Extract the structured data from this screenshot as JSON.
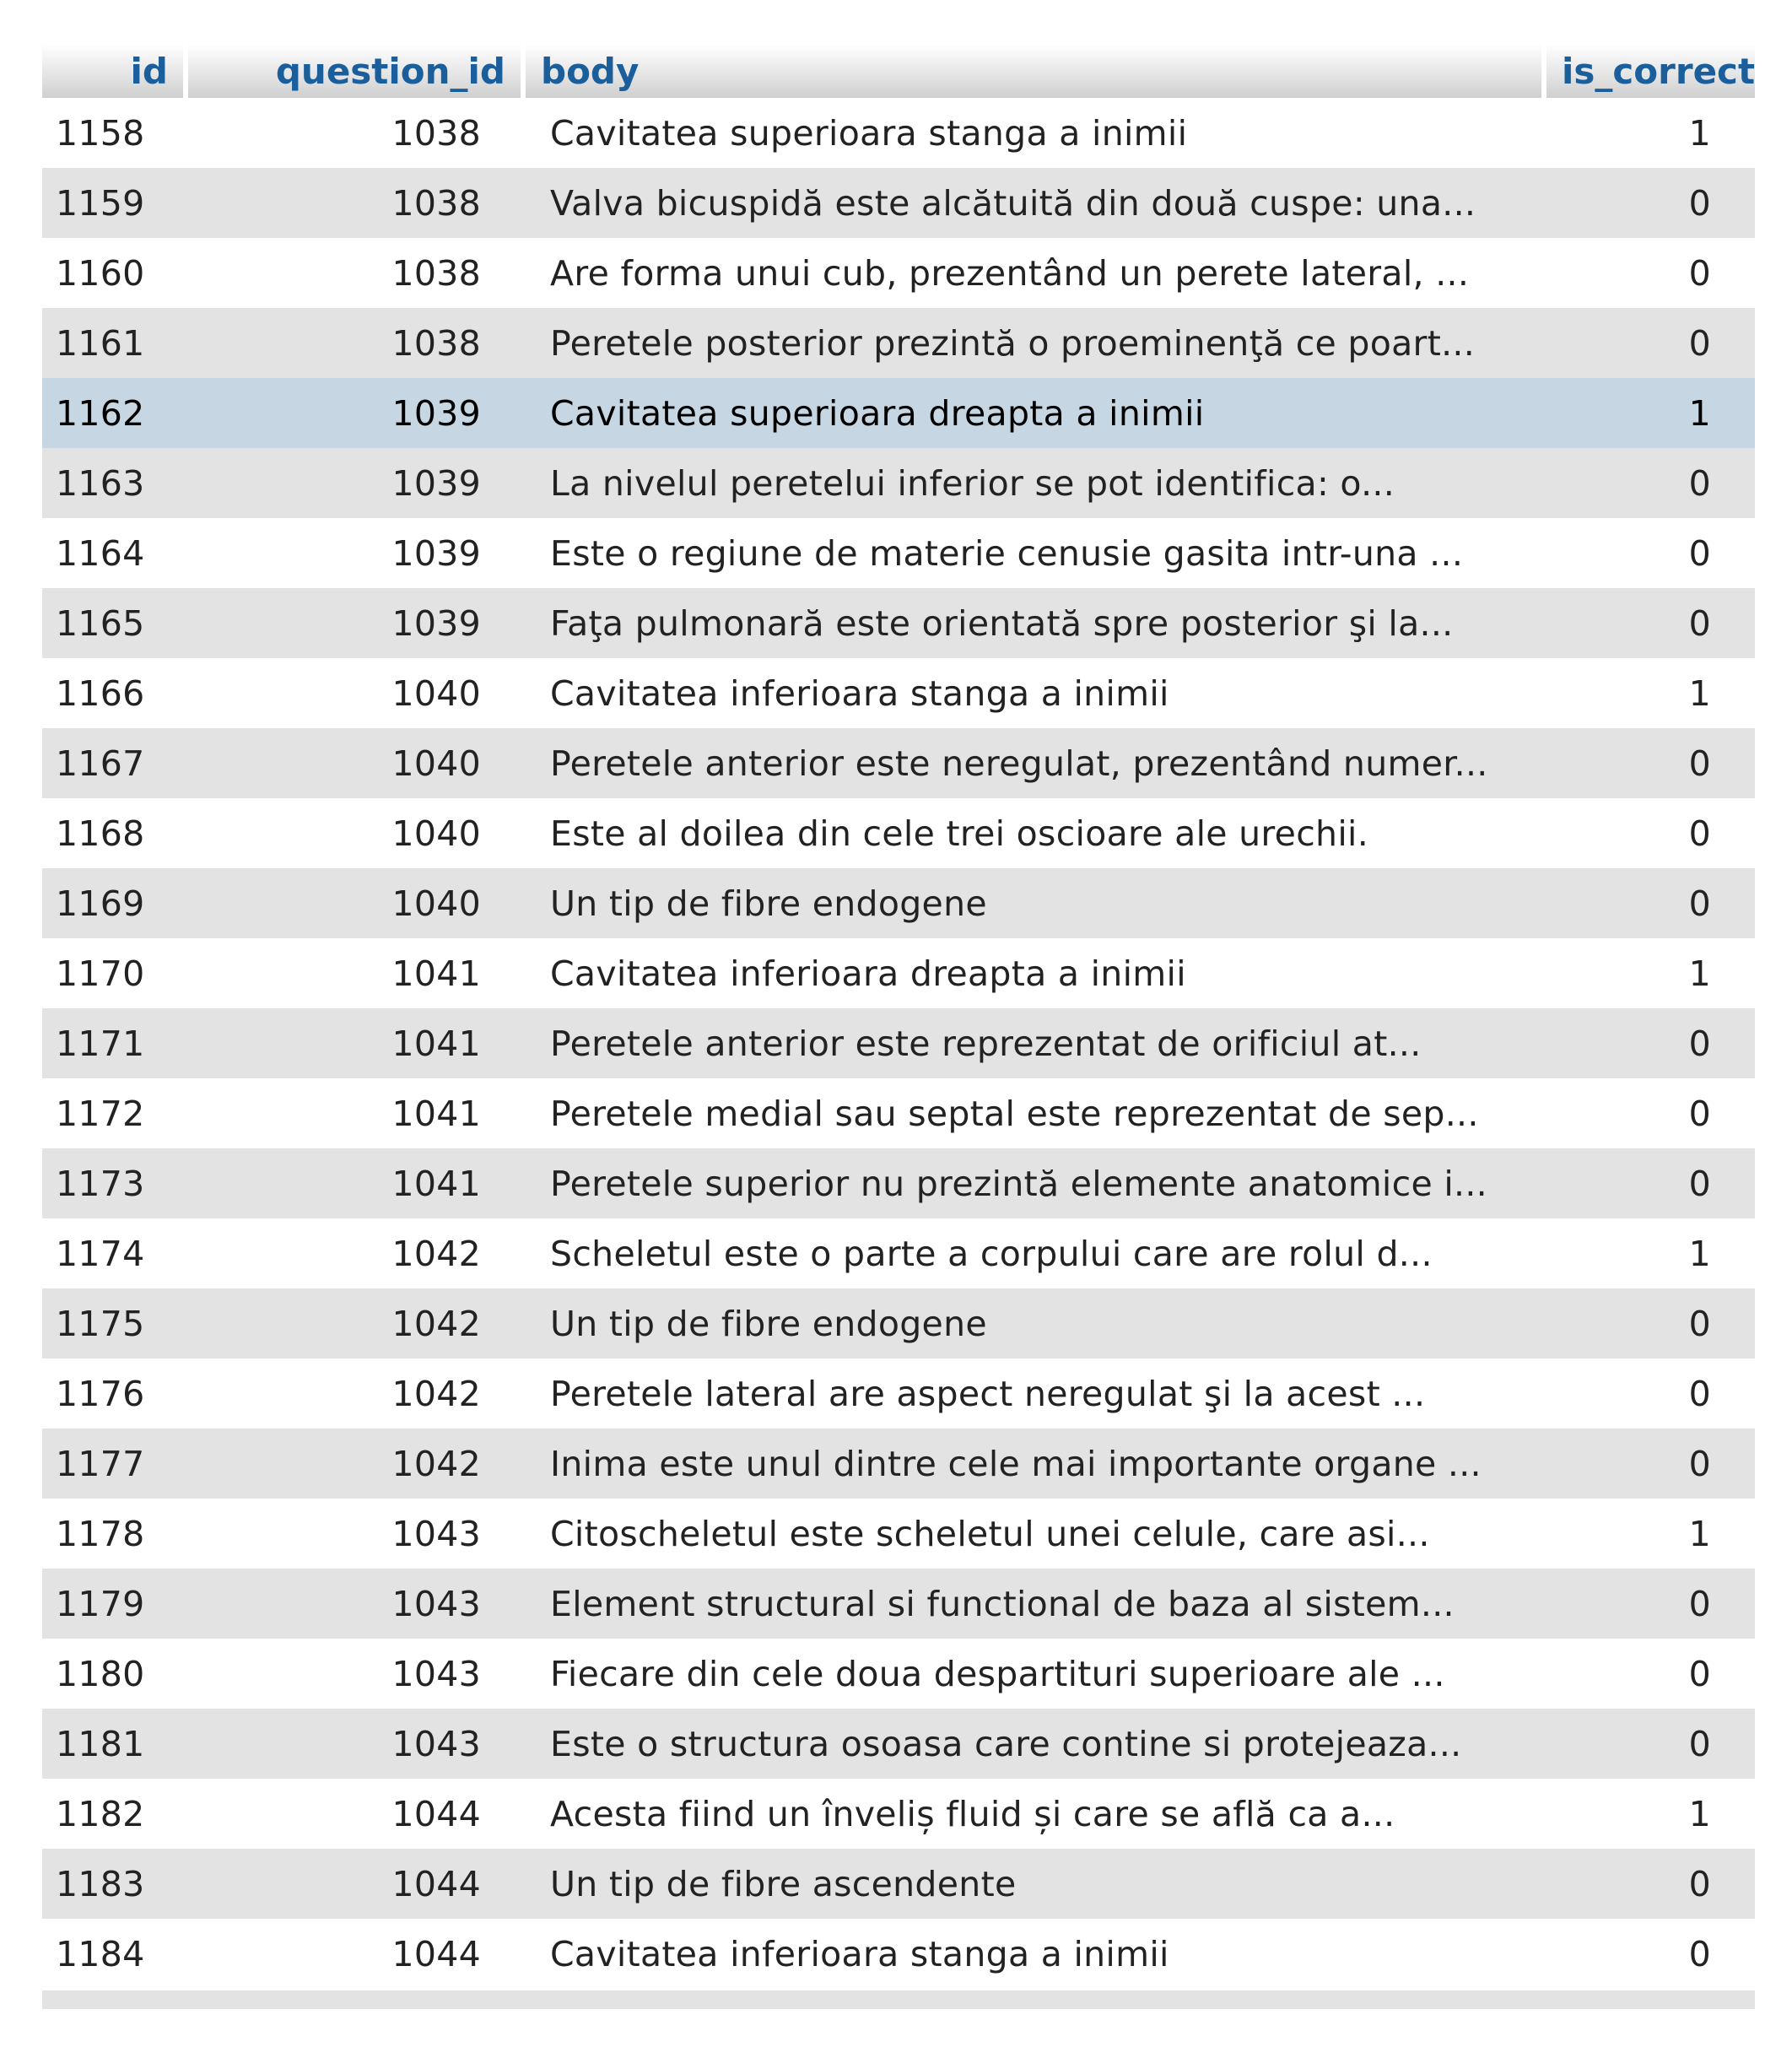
{
  "table": {
    "columns": [
      "id",
      "question_id",
      "body",
      "is_correct"
    ],
    "selected_row_id": "1162",
    "rows": [
      {
        "id": "1158",
        "question_id": "1038",
        "body": "Cavitatea superioara stanga a inimii",
        "is_correct": "1"
      },
      {
        "id": "1159",
        "question_id": "1038",
        "body": "Valva bicuspidă este alcătuită din două cuspe: una...",
        "is_correct": "0"
      },
      {
        "id": "1160",
        "question_id": "1038",
        "body": "Are forma unui cub, prezentând un perete lateral, ...",
        "is_correct": "0"
      },
      {
        "id": "1161",
        "question_id": "1038",
        "body": "Peretele posterior prezintă o proeminenţă ce poart...",
        "is_correct": "0"
      },
      {
        "id": "1162",
        "question_id": "1039",
        "body": "Cavitatea superioara dreapta a inimii",
        "is_correct": "1"
      },
      {
        "id": "1163",
        "question_id": "1039",
        "body": "La nivelul peretelui inferior se pot identifica: o...",
        "is_correct": "0"
      },
      {
        "id": "1164",
        "question_id": "1039",
        "body": "Este o regiune de materie cenusie gasita intr-una ...",
        "is_correct": "0"
      },
      {
        "id": "1165",
        "question_id": "1039",
        "body": "Faţa pulmonară este orientată spre posterior şi la...",
        "is_correct": "0"
      },
      {
        "id": "1166",
        "question_id": "1040",
        "body": "Cavitatea inferioara stanga a inimii",
        "is_correct": "1"
      },
      {
        "id": "1167",
        "question_id": "1040",
        "body": "Peretele anterior este neregulat, prezentând numer...",
        "is_correct": "0"
      },
      {
        "id": "1168",
        "question_id": "1040",
        "body": "Este al doilea din cele trei oscioare ale urechii.",
        "is_correct": "0"
      },
      {
        "id": "1169",
        "question_id": "1040",
        "body": "Un tip de fibre endogene",
        "is_correct": "0"
      },
      {
        "id": "1170",
        "question_id": "1041",
        "body": "Cavitatea inferioara dreapta a inimii",
        "is_correct": "1"
      },
      {
        "id": "1171",
        "question_id": "1041",
        "body": "Peretele anterior este reprezentat de orificiul at...",
        "is_correct": "0"
      },
      {
        "id": "1172",
        "question_id": "1041",
        "body": "Peretele medial sau septal este reprezentat de sep...",
        "is_correct": "0"
      },
      {
        "id": "1173",
        "question_id": "1041",
        "body": "Peretele superior nu prezintă elemente anatomice i...",
        "is_correct": "0"
      },
      {
        "id": "1174",
        "question_id": "1042",
        "body": "Scheletul este o parte a corpului care are rolul d...",
        "is_correct": "1"
      },
      {
        "id": "1175",
        "question_id": "1042",
        "body": "Un tip de fibre endogene",
        "is_correct": "0"
      },
      {
        "id": "1176",
        "question_id": "1042",
        "body": "Peretele lateral are aspect neregulat şi la acest ...",
        "is_correct": "0"
      },
      {
        "id": "1177",
        "question_id": "1042",
        "body": "Inima este unul dintre cele mai importante organe ...",
        "is_correct": "0"
      },
      {
        "id": "1178",
        "question_id": "1043",
        "body": "Citoscheletul este scheletul unei celule, care asi...",
        "is_correct": "1"
      },
      {
        "id": "1179",
        "question_id": "1043",
        "body": "Element structural si functional de baza al sistem...",
        "is_correct": "0"
      },
      {
        "id": "1180",
        "question_id": "1043",
        "body": "Fiecare din cele doua despartituri superioare ale ...",
        "is_correct": "0"
      },
      {
        "id": "1181",
        "question_id": "1043",
        "body": "Este o structura osoasa care contine si protejeaza...",
        "is_correct": "0"
      },
      {
        "id": "1182",
        "question_id": "1044",
        "body": "Acesta fiind un înveliș fluid și care se află ca a...",
        "is_correct": "1"
      },
      {
        "id": "1183",
        "question_id": "1044",
        "body": "Un tip de fibre ascendente",
        "is_correct": "0"
      },
      {
        "id": "1184",
        "question_id": "1044",
        "body": "Cavitatea inferioara stanga a inimii",
        "is_correct": "0"
      }
    ]
  },
  "colors": {
    "header_text": "#1b5e9c",
    "row_even": "#e3e3e3",
    "row_odd": "#ffffff",
    "row_selected": "#c6d6e2"
  }
}
